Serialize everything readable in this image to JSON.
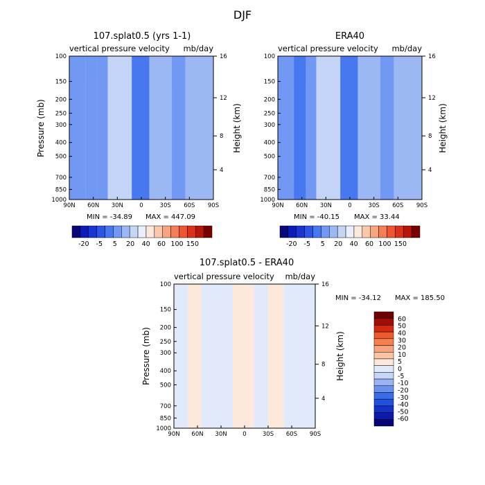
{
  "figure": {
    "title": "DJF"
  },
  "colors": {
    "model_scale": [
      "#08087a",
      "#0c1cb8",
      "#1736d4",
      "#2a55e8",
      "#4778f0",
      "#7198f2",
      "#9cb8f4",
      "#c4d5f8",
      "#e8f0fc",
      "#fde8dc",
      "#fbc8aa",
      "#f8a47e",
      "#f57e55",
      "#ee5530",
      "#dc3018",
      "#b81408",
      "#7a0000"
    ],
    "diff_scale": [
      "#050573",
      "#0b1aa8",
      "#1430c8",
      "#2350de",
      "#3b6deb",
      "#6a90ee",
      "#9ab2f2",
      "#c4d5f8",
      "#e0eafa",
      "#fde8dc",
      "#fac4a5",
      "#f8a37f",
      "#f5804f",
      "#ee5a2d",
      "#d42a12",
      "#a00c06",
      "#6e0000"
    ]
  },
  "panels": [
    {
      "id": "model",
      "title": "107.splat0.5 (yrs 1-1)",
      "subtitle": "vertical pressure velocity",
      "units": "mb/day",
      "min_label": "MIN = -34.89",
      "max_label": "MAX = 447.09",
      "colorbar_labels": [
        "-20",
        "-5",
        "5",
        "20",
        "40",
        "60",
        "100",
        "150"
      ]
    },
    {
      "id": "obs",
      "title": "ERA40",
      "subtitle": "vertical pressure velocity",
      "units": "mb/day",
      "min_label": "MIN = -40.15",
      "max_label": "MAX = 33.44",
      "colorbar_labels": [
        "-20",
        "-5",
        "5",
        "20",
        "40",
        "60",
        "100",
        "150"
      ]
    },
    {
      "id": "diff",
      "title": "107.splat0.5 - ERA40",
      "subtitle": "vertical pressure velocity",
      "units": "mb/day",
      "min_label": "MIN = -34.12",
      "max_label": "MAX = 185.50",
      "colorbar_labels": [
        "60",
        "50",
        "40",
        "30",
        "20",
        "10",
        "5",
        "0",
        "-5",
        "-10",
        "-20",
        "-30",
        "-40",
        "-50",
        "-60"
      ]
    }
  ],
  "chart_data": [
    {
      "type": "heatmap",
      "title": "107.splat0.5 (yrs 1-1)",
      "subtitle": "vertical pressure velocity",
      "units": "mb/day",
      "xlabel": "",
      "ylabel": "Pressure (mb)",
      "y2label": "Height (km)",
      "x_ticks": [
        "90N",
        "60N",
        "30N",
        "0",
        "30S",
        "60S",
        "90S"
      ],
      "x_range": [
        90,
        -90
      ],
      "y_ticks": [
        100,
        150,
        200,
        250,
        300,
        400,
        500,
        700,
        850,
        1000
      ],
      "y_range": [
        100,
        1000
      ],
      "y_scale": "log",
      "y2_ticks": [
        16,
        12,
        8,
        4
      ],
      "min": -34.89,
      "max": 447.09,
      "levels": [
        -20,
        -5,
        5,
        20,
        40,
        60,
        100,
        150
      ],
      "field_latitude_bands": [
        {
          "lat": [
            90,
            70
          ],
          "omega": -8
        },
        {
          "lat": [
            70,
            55
          ],
          "omega": -18
        },
        {
          "lat": [
            55,
            42
          ],
          "omega": -6
        },
        {
          "lat": [
            42,
            12
          ],
          "omega": 10
        },
        {
          "lat": [
            12,
            -10
          ],
          "omega": -28
        },
        {
          "lat": [
            -10,
            -38
          ],
          "omega": 2
        },
        {
          "lat": [
            -38,
            -55
          ],
          "omega": -14
        },
        {
          "lat": [
            -55,
            -90
          ],
          "omega": -4
        }
      ]
    },
    {
      "type": "heatmap",
      "title": "ERA40",
      "subtitle": "vertical pressure velocity",
      "units": "mb/day",
      "xlabel": "",
      "ylabel": "Pressure (mb)",
      "y2label": "Height (km)",
      "x_ticks": [
        "90N",
        "60N",
        "30N",
        "0",
        "30S",
        "60S",
        "90S"
      ],
      "x_range": [
        90,
        -90
      ],
      "y_ticks": [
        100,
        150,
        200,
        250,
        300,
        400,
        500,
        700,
        850,
        1000
      ],
      "y_range": [
        100,
        1000
      ],
      "y_scale": "log",
      "y2_ticks": [
        16,
        12,
        8,
        4
      ],
      "min": -40.15,
      "max": 33.44,
      "levels": [
        -20,
        -5,
        5,
        20,
        40,
        60,
        100,
        150
      ],
      "field_latitude_bands": [
        {
          "lat": [
            90,
            70
          ],
          "omega": -8
        },
        {
          "lat": [
            70,
            55
          ],
          "omega": -20
        },
        {
          "lat": [
            55,
            42
          ],
          "omega": -6
        },
        {
          "lat": [
            42,
            12
          ],
          "omega": 12
        },
        {
          "lat": [
            12,
            -10
          ],
          "omega": -32
        },
        {
          "lat": [
            -10,
            -38
          ],
          "omega": 0
        },
        {
          "lat": [
            -38,
            -55
          ],
          "omega": -14
        },
        {
          "lat": [
            -55,
            -90
          ],
          "omega": -4
        }
      ]
    },
    {
      "type": "heatmap",
      "title": "107.splat0.5 - ERA40",
      "subtitle": "vertical pressure velocity",
      "units": "mb/day",
      "xlabel": "",
      "ylabel": "Pressure (mb)",
      "y2label": "Height (km)",
      "x_ticks": [
        "90N",
        "60N",
        "30N",
        "0",
        "30S",
        "60S",
        "90S"
      ],
      "x_range": [
        90,
        -90
      ],
      "y_ticks": [
        100,
        150,
        200,
        250,
        300,
        400,
        500,
        700,
        850,
        1000
      ],
      "y_range": [
        100,
        1000
      ],
      "y_scale": "log",
      "y2_ticks": [
        16,
        12,
        8,
        4
      ],
      "min": -34.12,
      "max": 185.5,
      "levels": [
        -60,
        -50,
        -40,
        -30,
        -20,
        -10,
        -5,
        0,
        5,
        10,
        20,
        30,
        40,
        50,
        60
      ],
      "field_latitude_bands": [
        {
          "lat": [
            90,
            72
          ],
          "omega": -2
        },
        {
          "lat": [
            72,
            55
          ],
          "omega": 3
        },
        {
          "lat": [
            55,
            30
          ],
          "omega": -3
        },
        {
          "lat": [
            30,
            15
          ],
          "omega": -1
        },
        {
          "lat": [
            15,
            -12
          ],
          "omega": 4
        },
        {
          "lat": [
            -12,
            -30
          ],
          "omega": -3
        },
        {
          "lat": [
            -30,
            -50
          ],
          "omega": 3
        },
        {
          "lat": [
            -50,
            -90
          ],
          "omega": -2
        }
      ]
    }
  ]
}
